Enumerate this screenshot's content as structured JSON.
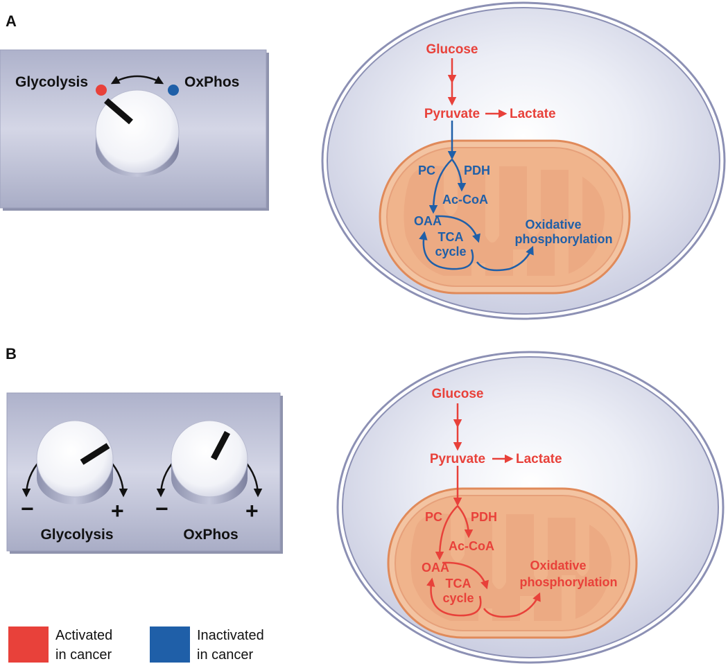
{
  "panels": {
    "a": {
      "letter": "A",
      "switch": {
        "left_label": "Glycolysis",
        "right_label": "OxPhos"
      },
      "cell": {
        "glucose": "Glucose",
        "pyruvate": "Pyruvate",
        "lactate": "Lactate",
        "pc": "PC",
        "pdh": "PDH",
        "accoa": "Ac-CoA",
        "oaa": "OAA",
        "tca_line1": "TCA",
        "tca_line2": "cycle",
        "oxphos_line1": "Oxidative",
        "oxphos_line2": "phosphorylation"
      }
    },
    "b": {
      "letter": "B",
      "dials": [
        {
          "label": "Glycolysis",
          "minus": "−",
          "plus": "+"
        },
        {
          "label": "OxPhos",
          "minus": "−",
          "plus": "+"
        }
      ],
      "cell": {
        "glucose": "Glucose",
        "pyruvate": "Pyruvate",
        "lactate": "Lactate",
        "pc": "PC",
        "pdh": "PDH",
        "accoa": "Ac-CoA",
        "oaa": "OAA",
        "tca_line1": "TCA",
        "tca_line2": "cycle",
        "oxphos_line1": "Oxidative",
        "oxphos_line2": "phosphorylation"
      }
    }
  },
  "legend": {
    "activated_line1": "Activated",
    "activated_line2": "in cancer",
    "inactivated_line1": "Inactivated",
    "inactivated_line2": "in cancer"
  },
  "colors": {
    "activated": "#e8413a",
    "inactivated": "#1f5fa8",
    "panel": "#b9bdd3",
    "cell_fill": "#dde0ee",
    "mito_fill": "#f0b48c",
    "mito_stroke": "#e08a5a"
  }
}
